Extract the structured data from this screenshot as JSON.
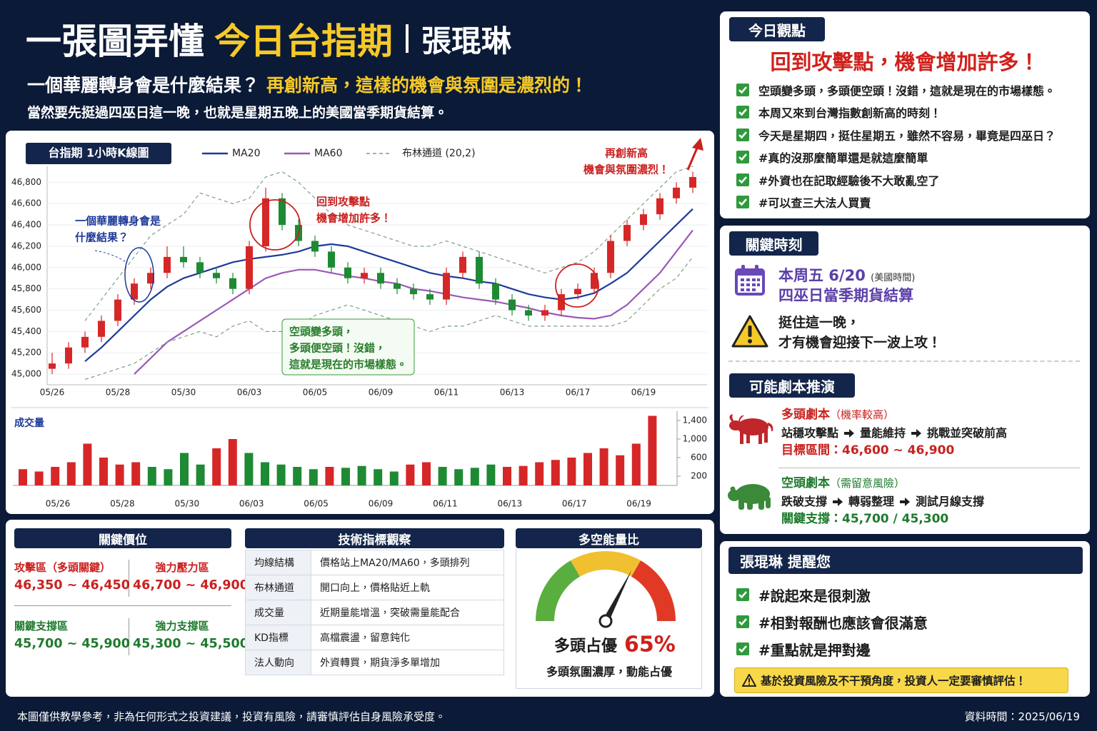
{
  "header": {
    "title": "一張圖弄懂",
    "title_highlight": "今日台指期",
    "author": "張琨琳",
    "question": "一個華麗轉身會是什麼結果？",
    "highlight": "再創新高，這樣的機會與氛圍是濃烈的！",
    "note": "當然要先挺過四巫日這一晚，也就是星期五晚上的美國當季期貨結算。"
  },
  "chart_data": [
    {
      "type": "candlestick",
      "title": "台指期 1小時K線圖",
      "categories": [
        "05/26",
        null,
        null,
        null,
        "05/28",
        null,
        null,
        null,
        "05/30",
        null,
        null,
        null,
        "06/03",
        null,
        null,
        null,
        "06/05",
        null,
        null,
        null,
        "06/09",
        null,
        null,
        null,
        "06/11",
        null,
        null,
        null,
        "06/13",
        null,
        null,
        null,
        "06/17",
        null,
        null,
        null,
        "06/19",
        null,
        null,
        null
      ],
      "open": [
        45050,
        45100,
        45250,
        45350,
        45500,
        45700,
        45850,
        45950,
        46100,
        46050,
        45950,
        45900,
        45800,
        46200,
        46650,
        46400,
        46250,
        46150,
        46000,
        45900,
        45950,
        45850,
        45800,
        45750,
        45700,
        45950,
        46100,
        45850,
        45700,
        45600,
        45550,
        45600,
        45750,
        45800,
        45950,
        46250,
        46400,
        46500,
        46650,
        46750
      ],
      "high": [
        45200,
        45300,
        45400,
        45550,
        45750,
        45900,
        46000,
        46200,
        46200,
        46100,
        46000,
        45950,
        46250,
        46750,
        46700,
        46450,
        46300,
        46200,
        46050,
        46000,
        46000,
        45900,
        45850,
        45800,
        46000,
        46150,
        46150,
        45900,
        45750,
        45650,
        45650,
        45800,
        45850,
        46000,
        46300,
        46450,
        46550,
        46700,
        46800,
        46900
      ],
      "low": [
        45000,
        45050,
        45200,
        45300,
        45450,
        45650,
        45800,
        45900,
        46000,
        45900,
        45850,
        45750,
        45750,
        46150,
        46350,
        46200,
        46100,
        45950,
        45850,
        45850,
        45800,
        45750,
        45700,
        45650,
        45650,
        45900,
        45800,
        45650,
        45550,
        45500,
        45500,
        45550,
        45700,
        45750,
        45900,
        46200,
        46350,
        46450,
        46600,
        46700
      ],
      "close": [
        45100,
        45250,
        45350,
        45500,
        45700,
        45850,
        45950,
        46100,
        46050,
        45950,
        45900,
        45800,
        46200,
        46650,
        46400,
        46250,
        46150,
        46000,
        45900,
        45950,
        45850,
        45800,
        45750,
        45700,
        45950,
        46100,
        45850,
        45700,
        45600,
        45550,
        45600,
        45750,
        45800,
        45950,
        46250,
        46400,
        46500,
        46650,
        46750,
        46850
      ],
      "up_color": "#d62728",
      "down_color": "#1e8a33",
      "series": [
        {
          "name": "MA20",
          "color": "#1f3a9a",
          "values": [
            null,
            null,
            45120,
            45250,
            45400,
            45550,
            45700,
            45820,
            45900,
            45950,
            46000,
            46050,
            46080,
            46100,
            46120,
            46150,
            46200,
            46220,
            46200,
            46150,
            46100,
            46050,
            46000,
            45950,
            45920,
            45900,
            45870,
            45850,
            45800,
            45750,
            45720,
            45700,
            45720,
            45760,
            45850,
            45950,
            46100,
            46250,
            46400,
            46550
          ]
        },
        {
          "name": "MA60",
          "color": "#9b59b6",
          "values": [
            null,
            null,
            null,
            null,
            null,
            45000,
            45150,
            45300,
            45400,
            45500,
            45600,
            45700,
            45800,
            45900,
            45950,
            45980,
            45980,
            45950,
            45920,
            45900,
            45870,
            45850,
            45800,
            45780,
            45750,
            45720,
            45700,
            45680,
            45650,
            45620,
            45580,
            45550,
            45530,
            45520,
            45550,
            45650,
            45800,
            45950,
            46150,
            46350
          ]
        },
        {
          "name": "布林通道 (20,2)",
          "color": "#7f9f86",
          "dash": true,
          "upper": [
            null,
            null,
            45500,
            45700,
            45900,
            46100,
            46300,
            46400,
            46500,
            46700,
            46650,
            46600,
            46650,
            46850,
            46900,
            46800,
            46650,
            46500,
            46400,
            46350,
            46300,
            46250,
            46200,
            46200,
            46250,
            46200,
            46150,
            46100,
            46050,
            46000,
            45950,
            46000,
            46050,
            46150,
            46300,
            46450,
            46600,
            46750,
            46900,
            46950
          ],
          "lower": [
            null,
            null,
            44950,
            45000,
            45050,
            45100,
            45200,
            45300,
            45350,
            45400,
            45350,
            45450,
            45500,
            45400,
            45400,
            45450,
            45550,
            45600,
            45650,
            45600,
            45550,
            45500,
            45450,
            45400,
            45450,
            45450,
            45500,
            45550,
            45500,
            45450,
            45450,
            45450,
            45450,
            45450,
            45450,
            45500,
            45650,
            45800,
            45900,
            46100
          ]
        }
      ],
      "ylim": [
        44900,
        46950
      ],
      "yticks": [
        {
          "value": 45000,
          "label": "45,000"
        },
        {
          "value": 45200,
          "label": "45,200"
        },
        {
          "value": 45400,
          "label": "45,400"
        },
        {
          "value": 45600,
          "label": "45,600"
        },
        {
          "value": 45800,
          "label": "45,800"
        },
        {
          "value": 46000,
          "label": "46,000"
        },
        {
          "value": 46200,
          "label": "46,200"
        },
        {
          "value": 46400,
          "label": "46,400"
        },
        {
          "value": 46600,
          "label": "46,600"
        },
        {
          "value": 46800,
          "label": "46,800"
        }
      ],
      "grid": true,
      "annotations": [
        {
          "color": "#1f3a9a",
          "lines": [
            "一個華麗轉身會是",
            "什麼結果？"
          ]
        },
        {
          "color": "#c9211e",
          "lines": [
            "回到攻擊點",
            "機會增加許多！"
          ]
        },
        {
          "color": "#2a7d2e",
          "lines": [
            "空頭變多頭，",
            "多頭便空頭！沒錯，",
            "這就是現在的市場樣態。"
          ]
        },
        {
          "color": "#c9211e",
          "lines": [
            "再創新高",
            "機會與氛圍濃烈！"
          ]
        }
      ]
    },
    {
      "type": "bar",
      "title": "成交量",
      "categories": [
        "05/26",
        null,
        null,
        null,
        "05/28",
        null,
        null,
        null,
        "05/30",
        null,
        null,
        null,
        "06/03",
        null,
        null,
        null,
        "06/05",
        null,
        null,
        null,
        "06/09",
        null,
        null,
        null,
        "06/11",
        null,
        null,
        null,
        "06/13",
        null,
        null,
        null,
        "06/17",
        null,
        null,
        null,
        "06/19",
        null,
        null,
        null
      ],
      "values": [
        350,
        300,
        400,
        500,
        900,
        600,
        450,
        500,
        400,
        350,
        700,
        450,
        800,
        1000,
        700,
        500,
        450,
        400,
        350,
        400,
        380,
        420,
        350,
        300,
        450,
        500,
        400,
        350,
        380,
        450,
        400,
        420,
        500,
        550,
        600,
        700,
        800,
        650,
        900,
        1500
      ],
      "ylim": [
        0,
        1600
      ],
      "yticks": [
        200,
        600,
        {
          "value": 1000,
          "label": "1,000"
        },
        {
          "value": 1400,
          "label": "1,400"
        }
      ]
    },
    {
      "type": "gauge",
      "title": "多空能量比",
      "label": "多頭占優",
      "values": [
        65
      ],
      "value_labels": [
        "65%"
      ],
      "ylim": [
        0,
        100
      ],
      "caption": "多頭氛圍濃厚，動能占優"
    }
  ],
  "key_levels": {
    "title": "關鍵價位",
    "items": [
      {
        "label": "攻擊區（多頭關鍵）",
        "range": "46,350 ~ 46,450"
      },
      {
        "label": "強力壓力區",
        "range": "46,700 ~ 46,900"
      },
      {
        "label": "關鍵支撐區",
        "range": "45,700 ~ 45,900"
      },
      {
        "label": "強力支撐區",
        "range": "45,300 ~ 45,500"
      }
    ]
  },
  "indicators": {
    "title": "技術指標觀察",
    "rows": [
      [
        "均線結構",
        "價格站上MA20/MA60，多頭排列"
      ],
      [
        "布林通道",
        "開口向上，價格貼近上軌"
      ],
      [
        "成交量",
        "近期量能增溫，突破需量能配合"
      ],
      [
        "KD指標",
        "高檔震盪，留意鈍化"
      ],
      [
        "法人動向",
        "外資轉買，期貨淨多單增加"
      ]
    ]
  },
  "today_view": {
    "title": "今日觀點",
    "headline": "回到攻擊點，機會增加許多！",
    "items": [
      "空頭變多頭，多頭便空頭！沒錯，這就是現在的市場樣態。",
      "本周又來到台灣指數創新高的時刻！",
      "今天是星期四，挺住星期五，雖然不容易，畢竟是四巫日？",
      "#真的沒那麼簡單還是就這麼簡單",
      "#外資也在記取經驗後不大敢亂空了",
      "#可以查三大法人買賣"
    ]
  },
  "key_moment": {
    "title": "關鍵時刻",
    "date": "本周五 6/20",
    "date_note": "(美國時間)",
    "event": "四巫日當季期貨結算",
    "warning": [
      "挺住這一晚，",
      "才有機會迎接下一波上攻！"
    ]
  },
  "scenarios": {
    "title": "可能劇本推演",
    "bull": {
      "name": "多頭劇本",
      "note": "（機率較高）",
      "steps": [
        "站穩攻擊點",
        "量能維持",
        "挑戰並突破前高"
      ],
      "target": "目標區間：46,600 ~ 46,900"
    },
    "bear": {
      "name": "空頭劇本",
      "note": "（需留意風險）",
      "steps": [
        "跌破支撐",
        "轉弱整理",
        "測試月線支撐"
      ],
      "target": "關鍵支撐：45,700 / 45,300"
    }
  },
  "reminder": {
    "title": "張琨琳 提醒您",
    "items": [
      "#說起來是很刺激",
      "#相對報酬也應該會很滿意",
      "#重點就是押對邊"
    ],
    "warning": "基於投資風險及不干預角度，投資人一定要審慎評估！"
  },
  "footer": {
    "disclaimer": "本圖僅供教學參考，非為任何形式之投資建議，投資有風險，請審慎評估自身風險承受度。",
    "data_time": "資料時間：2025/06/19"
  }
}
